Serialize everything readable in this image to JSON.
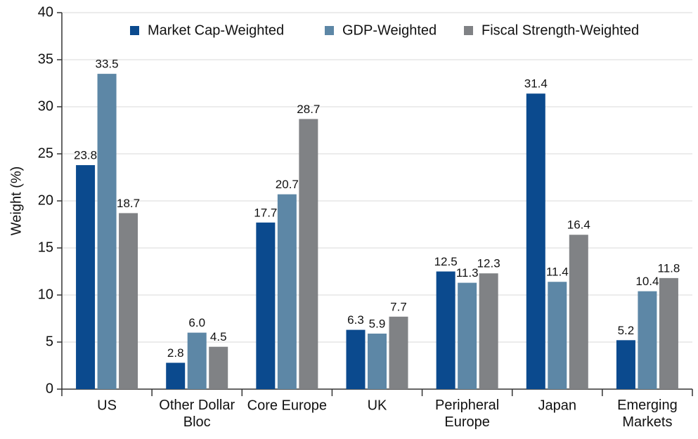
{
  "chart_data": {
    "type": "bar",
    "y_label": "Weight (%)",
    "categories": [
      "US",
      "Other Dollar Bloc",
      "Core Europe",
      "UK",
      "Peripheral Europe",
      "Japan",
      "Emerging Markets"
    ],
    "series": [
      {
        "name": "Market Cap-Weighted",
        "color": "#0b4a8e",
        "values": [
          23.8,
          2.8,
          17.7,
          6.3,
          12.5,
          31.4,
          5.2
        ],
        "value_labels": [
          "23.8",
          "2.8",
          "17.7",
          "6.3",
          "12.5",
          "31.4",
          "5.2"
        ]
      },
      {
        "name": "GDP-Weighted",
        "color": "#5d87a6",
        "values": [
          33.5,
          6,
          20.7,
          5.9,
          11.3,
          11.4,
          10.4
        ],
        "value_labels": [
          "33.5",
          "6.0",
          "20.7",
          "5.9",
          "11.3",
          "11.4",
          "10.4"
        ]
      },
      {
        "name": "Fiscal Strength-Weighted",
        "color": "#808285",
        "values": [
          18.7,
          4.5,
          28.7,
          7.7,
          12.3,
          16.4,
          11.8
        ],
        "value_labels": [
          "18.7",
          "4.5",
          "28.7",
          "7.7",
          "12.3",
          "16.4",
          "11.8"
        ]
      }
    ],
    "ylim": [
      0,
      40
    ],
    "yticks": [
      0,
      5,
      10,
      15,
      20,
      25,
      30,
      35,
      40
    ],
    "grid": true
  }
}
